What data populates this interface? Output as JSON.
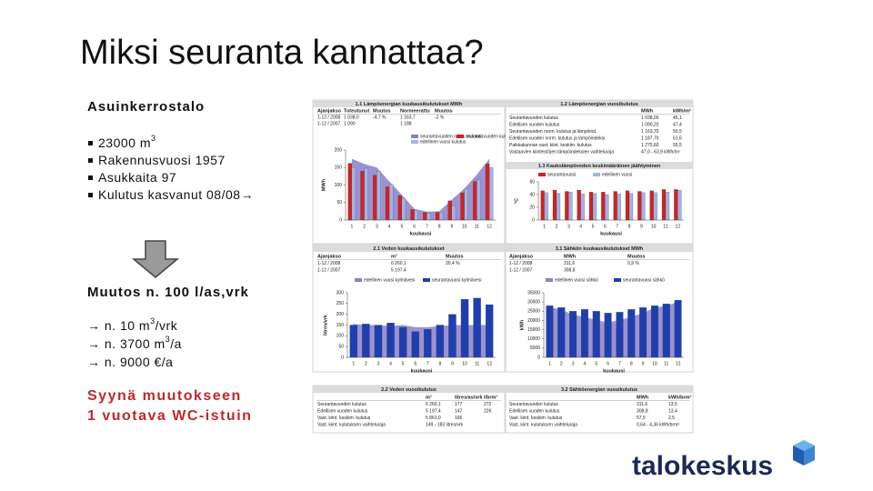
{
  "title": "Miksi seuranta kannattaa?",
  "left": {
    "heading": "Asuinkerrostalo",
    "bullets": [
      {
        "text": "23000 m",
        "sup": "3"
      },
      {
        "text": "Rakennusvuosi 1957"
      },
      {
        "text": "Asukkaita 97"
      },
      {
        "text": "Kulutus kasvanut 08/08→"
      }
    ],
    "change": "Muutos n. 100 l/as,vrk",
    "effects": [
      {
        "text": "→ n. 10 m",
        "sup": "3",
        "tail": "/vrk"
      },
      {
        "text": "→ n. 3700 m",
        "sup": "3",
        "tail": "/a"
      },
      {
        "text": "→ n. 9000 €/a"
      }
    ],
    "cause": [
      "Syynä muutokseen",
      "1 vuotava WC-istuin"
    ]
  },
  "panels": [
    {
      "title": "1.1 Lämpöenergian kuukausikulutukset MWh",
      "table": {
        "header": [
          "Ajanjakso",
          "Toteutunut",
          "Muutos",
          "Normeerattu",
          "Muutos"
        ],
        "rows": [
          [
            "1-12 / 2008",
            "1 038,0",
            "-4,7 %",
            "1 163,7",
            "-2 %"
          ],
          [
            "1-12 / 2007",
            "1 090",
            null,
            "1 188",
            null
          ]
        ]
      },
      "chart": {
        "type": "bar",
        "ylabel": "MWh",
        "xlabel": "kuukausi",
        "ylim": [
          0,
          200
        ],
        "yticks": [
          0,
          50,
          100,
          150,
          200
        ],
        "categories": [
          1,
          2,
          3,
          4,
          5,
          6,
          7,
          8,
          9,
          10,
          11,
          12
        ],
        "series": [
          {
            "name": "seurantavuoden norm. kulutus",
            "color": "#8a7fc8",
            "kind": "area",
            "values": [
              175,
              160,
              150,
              110,
              72,
              32,
              24,
              25,
              58,
              90,
              130,
              175
            ]
          },
          {
            "name": "seurantavuoden kulutus",
            "color": "#d42020",
            "kind": "bar",
            "values": [
              162,
              140,
              128,
              95,
              70,
              30,
              22,
              22,
              55,
              78,
              110,
              160
            ]
          },
          {
            "name": "edellinen vuosi kulutus",
            "color": "#9fb4e8",
            "kind": "bar",
            "values": [
              150,
              148,
              140,
              102,
              62,
              28,
              20,
              22,
              40,
              90,
              115,
              150
            ]
          }
        ]
      }
    },
    {
      "title": "1.2 Lämpöenergian vuosikulutus",
      "table": {
        "header": [
          "MWh",
          "kWh/m²"
        ],
        "rows": [
          [
            "Seurantavuoden kulutus",
            "1 038,00",
            "45,1"
          ],
          [
            "Edellisen vuoden kulutus",
            "1 090,20",
            "47,4"
          ],
          [
            "Seurantavuoden norm. kulutus ja lämpöind.",
            "1 163,70",
            "50,5"
          ],
          [
            "Edellisen vuoden norm. kulutus ja lämpöindeksi",
            "1 187,70",
            "51,6"
          ],
          [
            "Paikkakunnan vast. kiint. keskim. kulutus",
            "1 275,60",
            "55,5"
          ],
          [
            "Vastaavien kiinteistöjen lämpöindeksien vaihteluraja",
            "47,0 - 63,9 kWh/m²"
          ]
        ]
      },
      "chart": {
        "type": "bar",
        "title": "1.3 Kaukolämpöveden keskimääräinen jäähtyminen",
        "ylabel": "°C",
        "xlabel": "kuukausi",
        "ylim": [
          0,
          60
        ],
        "yticks": [
          0,
          20,
          40,
          60
        ],
        "categories": [
          1,
          2,
          3,
          4,
          5,
          6,
          7,
          8,
          9,
          10,
          11,
          12
        ],
        "series": [
          {
            "name": "seurantavuosi",
            "color": "#d42020",
            "kind": "bar",
            "values": [
              46,
              47,
              45,
              47,
              44,
              44,
              45,
              46,
              45,
              46,
              48,
              48
            ]
          },
          {
            "name": "edellinen vuosi",
            "color": "#9fb4e8",
            "kind": "bar",
            "values": [
              43,
              42,
              44,
              41,
              42,
              40,
              41,
              42,
              43,
              43,
              44,
              47
            ]
          }
        ]
      }
    },
    {
      "title": "2.1 Veden kuukausikulutukset",
      "table": {
        "header": [
          "Ajanjakso",
          "m³",
          "Muutos"
        ],
        "rows": [
          [
            "1-12 / 2008",
            "6 260,1",
            "20,4 %"
          ],
          [
            "1-12 / 2007",
            "5 197,4"
          ]
        ]
      },
      "chart": {
        "type": "bar",
        "ylabel": "litres/vrk",
        "xlabel": "kuukausi",
        "ylim": [
          0,
          300
        ],
        "yticks": [
          0,
          50,
          100,
          150,
          200,
          250,
          300
        ],
        "categories": [
          1,
          2,
          3,
          4,
          5,
          6,
          7,
          8,
          9,
          10,
          11,
          12
        ],
        "series": [
          {
            "name": "edellinen vuosi kylmävesi",
            "color": "#8a7fc8",
            "kind": "area",
            "values": [
              155,
              150,
              150,
              145,
              150,
              140,
              140,
              145,
              150,
              150,
              150,
              150
            ]
          },
          {
            "name": "seurantavuosi kylmävesi",
            "color": "#1f3fb0",
            "kind": "bar",
            "values": [
              150,
              155,
              150,
              160,
              140,
              120,
              130,
              150,
              200,
              270,
              275,
              245
            ]
          }
        ]
      }
    },
    {
      "title": "3.1 Sähkön kuukausikulutukset MWh",
      "table": {
        "header": [
          "Ajanjakso",
          "MWh",
          "Muutos"
        ],
        "rows": [
          [
            "1-12 / 2008",
            "311,6",
            "0,9 %"
          ],
          [
            "1-12 / 2007",
            "308,8"
          ]
        ]
      },
      "chart": {
        "type": "bar",
        "ylabel": "kWh",
        "xlabel": "kuukausi",
        "ylim": [
          0,
          35000
        ],
        "yticks": [
          0,
          5000,
          10000,
          15000,
          20000,
          25000,
          30000,
          35000
        ],
        "categories": [
          1,
          2,
          3,
          4,
          5,
          6,
          7,
          8,
          9,
          10,
          11,
          12
        ],
        "series": [
          {
            "name": "edellinen vuosi sähkö",
            "color": "#8a7fc8",
            "kind": "area",
            "values": [
              27000,
              26000,
              23000,
              22000,
              20000,
              19000,
              20000,
              22000,
              24000,
              27000,
              28000,
              30000
            ]
          },
          {
            "name": "seurantavuosi sähkö",
            "color": "#1f3fb0",
            "kind": "bar",
            "values": [
              28000,
              27000,
              25000,
              26000,
              25000,
              24000,
              24500,
              26000,
              27000,
              28000,
              29000,
              31000
            ]
          }
        ]
      }
    },
    {
      "title": "2.2 Veden vuosikulutus",
      "table": {
        "header": [
          "m³",
          "litres/as/vrk",
          "l/brm³"
        ],
        "rows": [
          [
            "Seurantavuoden kulutus",
            "6 260,1",
            "177",
            "272"
          ],
          [
            "Edellisen vuoden kulutus",
            "5 197,4",
            "147",
            "226"
          ],
          [
            "Vast. kiint. keskim. kulutus",
            "5 861,0",
            "166"
          ],
          [
            "Vast. kiint. kulutuksen vaihteluraja",
            "149 - 183 litres/vrk"
          ]
        ]
      }
    },
    {
      "title": "3.2 Sähköenergian vuosikulutus",
      "table": {
        "header": [
          "MWh",
          "kWh/brm³"
        ],
        "rows": [
          [
            "Seurantavuoden kulutus",
            "311,6",
            "13,5"
          ],
          [
            "Edellisen vuoden kulutus",
            "308,8",
            "13,4"
          ],
          [
            "Vast. kiint. keskim. kulutus",
            "57,5",
            "2,5"
          ],
          [
            "Vast. kiint. kulutuksen vaihteluraja",
            "0,64 - 4,36 kWh/brm³"
          ]
        ]
      }
    }
  ],
  "logo": "talokeskus"
}
